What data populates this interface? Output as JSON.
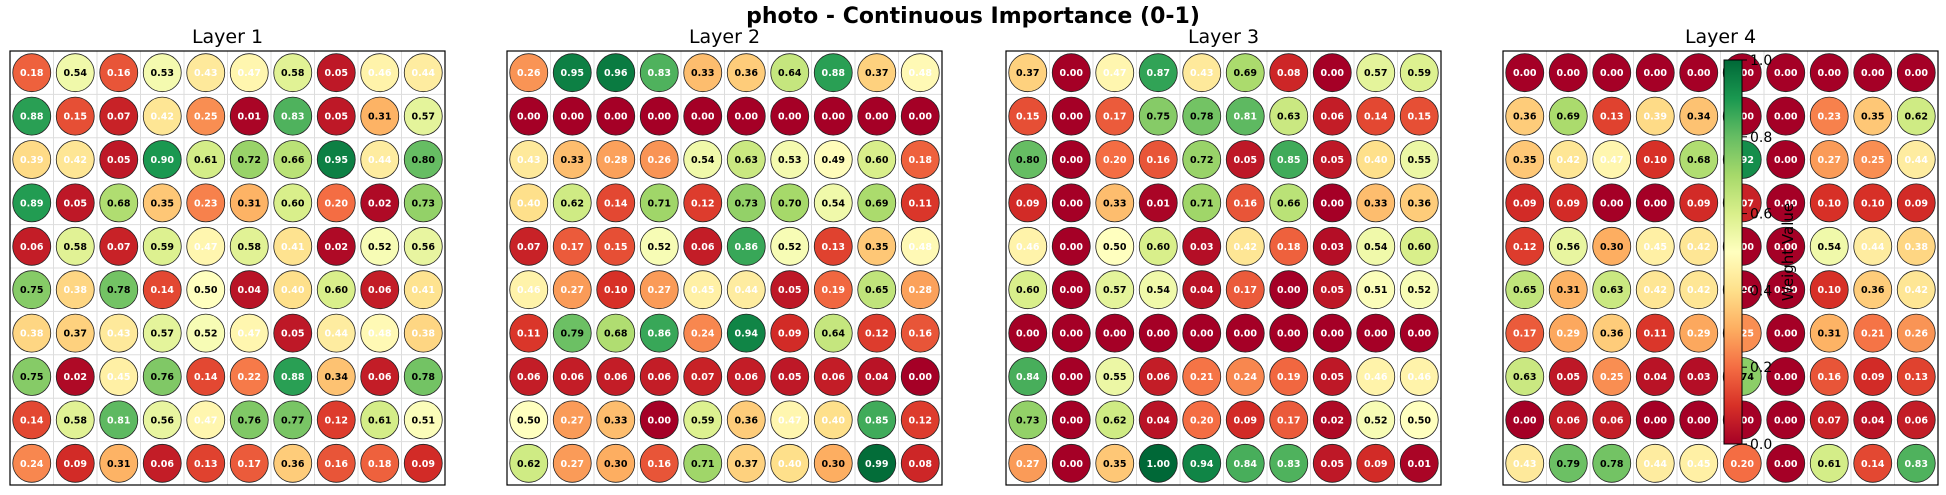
{
  "title": "photo - Continuous Importance (0-1)",
  "chart_data": {
    "type": "heatmap",
    "title": "photo - Continuous Importance (0-1)",
    "value_range": [
      0,
      1
    ],
    "colormap": "RdYlGn",
    "grid": true,
    "layers": [
      {
        "name": "Layer 1",
        "values": [
          [
            0.18,
            0.54,
            0.16,
            0.53,
            0.43,
            0.47,
            0.58,
            0.05,
            0.46,
            0.44
          ],
          [
            0.88,
            0.15,
            0.07,
            0.42,
            0.25,
            0.01,
            0.83,
            0.05,
            0.31,
            0.57
          ],
          [
            0.39,
            0.42,
            0.05,
            0.9,
            0.61,
            0.72,
            0.66,
            0.95,
            0.44,
            0.8
          ],
          [
            0.89,
            0.05,
            0.68,
            0.35,
            0.23,
            0.31,
            0.6,
            0.2,
            0.02,
            0.73
          ],
          [
            0.06,
            0.58,
            0.07,
            0.59,
            0.47,
            0.58,
            0.41,
            0.02,
            0.52,
            0.56
          ],
          [
            0.75,
            0.38,
            0.78,
            0.14,
            0.5,
            0.04,
            0.4,
            0.6,
            0.06,
            0.41
          ],
          [
            0.38,
            0.37,
            0.43,
            0.57,
            0.52,
            0.47,
            0.05,
            0.44,
            0.48,
            0.38
          ],
          [
            0.75,
            0.02,
            0.45,
            0.76,
            0.14,
            0.22,
            0.88,
            0.34,
            0.06,
            0.78
          ],
          [
            0.14,
            0.58,
            0.81,
            0.56,
            0.47,
            0.76,
            0.77,
            0.12,
            0.61,
            0.51
          ],
          [
            0.24,
            0.09,
            0.31,
            0.06,
            0.13,
            0.17,
            0.36,
            0.16,
            0.18,
            0.09
          ]
        ]
      },
      {
        "name": "Layer 2",
        "values": [
          [
            0.26,
            0.95,
            0.96,
            0.83,
            0.33,
            0.36,
            0.64,
            0.88,
            0.37,
            0.48
          ],
          [
            0.0,
            0.0,
            0.0,
            0.0,
            0.0,
            0.0,
            0.0,
            0.0,
            0.0,
            0.0
          ],
          [
            0.43,
            0.33,
            0.28,
            0.26,
            0.54,
            0.63,
            0.53,
            0.49,
            0.6,
            0.18
          ],
          [
            0.4,
            0.62,
            0.14,
            0.71,
            0.12,
            0.73,
            0.7,
            0.54,
            0.69,
            0.11
          ],
          [
            0.07,
            0.17,
            0.15,
            0.52,
            0.06,
            0.86,
            0.52,
            0.13,
            0.35,
            0.48
          ],
          [
            0.46,
            0.27,
            0.1,
            0.27,
            0.45,
            0.44,
            0.05,
            0.19,
            0.65,
            0.28
          ],
          [
            0.11,
            0.79,
            0.68,
            0.86,
            0.24,
            0.94,
            0.09,
            0.64,
            0.12,
            0.16
          ],
          [
            0.06,
            0.06,
            0.06,
            0.06,
            0.07,
            0.06,
            0.05,
            0.06,
            0.04,
            0.0
          ],
          [
            0.5,
            0.27,
            0.33,
            0.0,
            0.59,
            0.36,
            0.47,
            0.4,
            0.85,
            0.12
          ],
          [
            0.62,
            0.27,
            0.3,
            0.16,
            0.71,
            0.37,
            0.4,
            0.3,
            0.99,
            0.08
          ]
        ]
      },
      {
        "name": "Layer 3",
        "values": [
          [
            0.37,
            0.0,
            0.47,
            0.87,
            0.43,
            0.69,
            0.08,
            0.0,
            0.57,
            0.59
          ],
          [
            0.15,
            0.0,
            0.17,
            0.75,
            0.78,
            0.81,
            0.63,
            0.06,
            0.14,
            0.15
          ],
          [
            0.8,
            0.0,
            0.2,
            0.16,
            0.72,
            0.05,
            0.85,
            0.05,
            0.4,
            0.55
          ],
          [
            0.09,
            0.0,
            0.33,
            0.01,
            0.71,
            0.16,
            0.66,
            0.0,
            0.33,
            0.36
          ],
          [
            0.46,
            0.0,
            0.5,
            0.6,
            0.03,
            0.42,
            0.18,
            0.03,
            0.54,
            0.6
          ],
          [
            0.6,
            0.0,
            0.57,
            0.54,
            0.04,
            0.17,
            0.0,
            0.05,
            0.51,
            0.52
          ],
          [
            0.0,
            0.0,
            0.0,
            0.0,
            0.0,
            0.0,
            0.0,
            0.0,
            0.0,
            0.0
          ],
          [
            0.84,
            0.0,
            0.55,
            0.06,
            0.21,
            0.24,
            0.19,
            0.05,
            0.46,
            0.46
          ],
          [
            0.73,
            0.0,
            0.62,
            0.04,
            0.2,
            0.09,
            0.17,
            0.02,
            0.52,
            0.5
          ],
          [
            0.27,
            0.0,
            0.35,
            1.0,
            0.94,
            0.84,
            0.83,
            0.05,
            0.09,
            0.01
          ]
        ]
      },
      {
        "name": "Layer 4",
        "values": [
          [
            0.0,
            0.0,
            0.0,
            0.0,
            0.0,
            0.0,
            0.0,
            0.0,
            0.0,
            0.0
          ],
          [
            0.36,
            0.69,
            0.13,
            0.39,
            0.34,
            0.0,
            0.0,
            0.23,
            0.35,
            0.62
          ],
          [
            0.35,
            0.42,
            0.47,
            0.1,
            0.68,
            0.92,
            0.0,
            0.27,
            0.25,
            0.44
          ],
          [
            0.09,
            0.09,
            0.0,
            0.0,
            0.09,
            0.07,
            0.0,
            0.1,
            0.1,
            0.09
          ],
          [
            0.12,
            0.56,
            0.3,
            0.45,
            0.42,
            0.0,
            0.0,
            0.54,
            0.44,
            0.38
          ],
          [
            0.65,
            0.31,
            0.63,
            0.42,
            0.42,
            0.0,
            0.0,
            0.1,
            0.36,
            0.42
          ],
          [
            0.17,
            0.29,
            0.36,
            0.11,
            0.29,
            0.25,
            0.0,
            0.31,
            0.21,
            0.26
          ],
          [
            0.63,
            0.05,
            0.25,
            0.04,
            0.03,
            0.74,
            0.0,
            0.16,
            0.09,
            0.13
          ],
          [
            0.0,
            0.06,
            0.06,
            0.0,
            0.0,
            0.0,
            0.0,
            0.07,
            0.04,
            0.06
          ],
          [
            0.43,
            0.79,
            0.78,
            0.44,
            0.45,
            0.2,
            0.0,
            0.61,
            0.14,
            0.83
          ]
        ]
      }
    ],
    "colorbar": {
      "label": "Weight Value",
      "range": [
        0,
        1
      ],
      "ticks": [
        "0.0",
        "0.2",
        "0.4",
        "0.6",
        "0.8",
        "1.0"
      ]
    }
  }
}
